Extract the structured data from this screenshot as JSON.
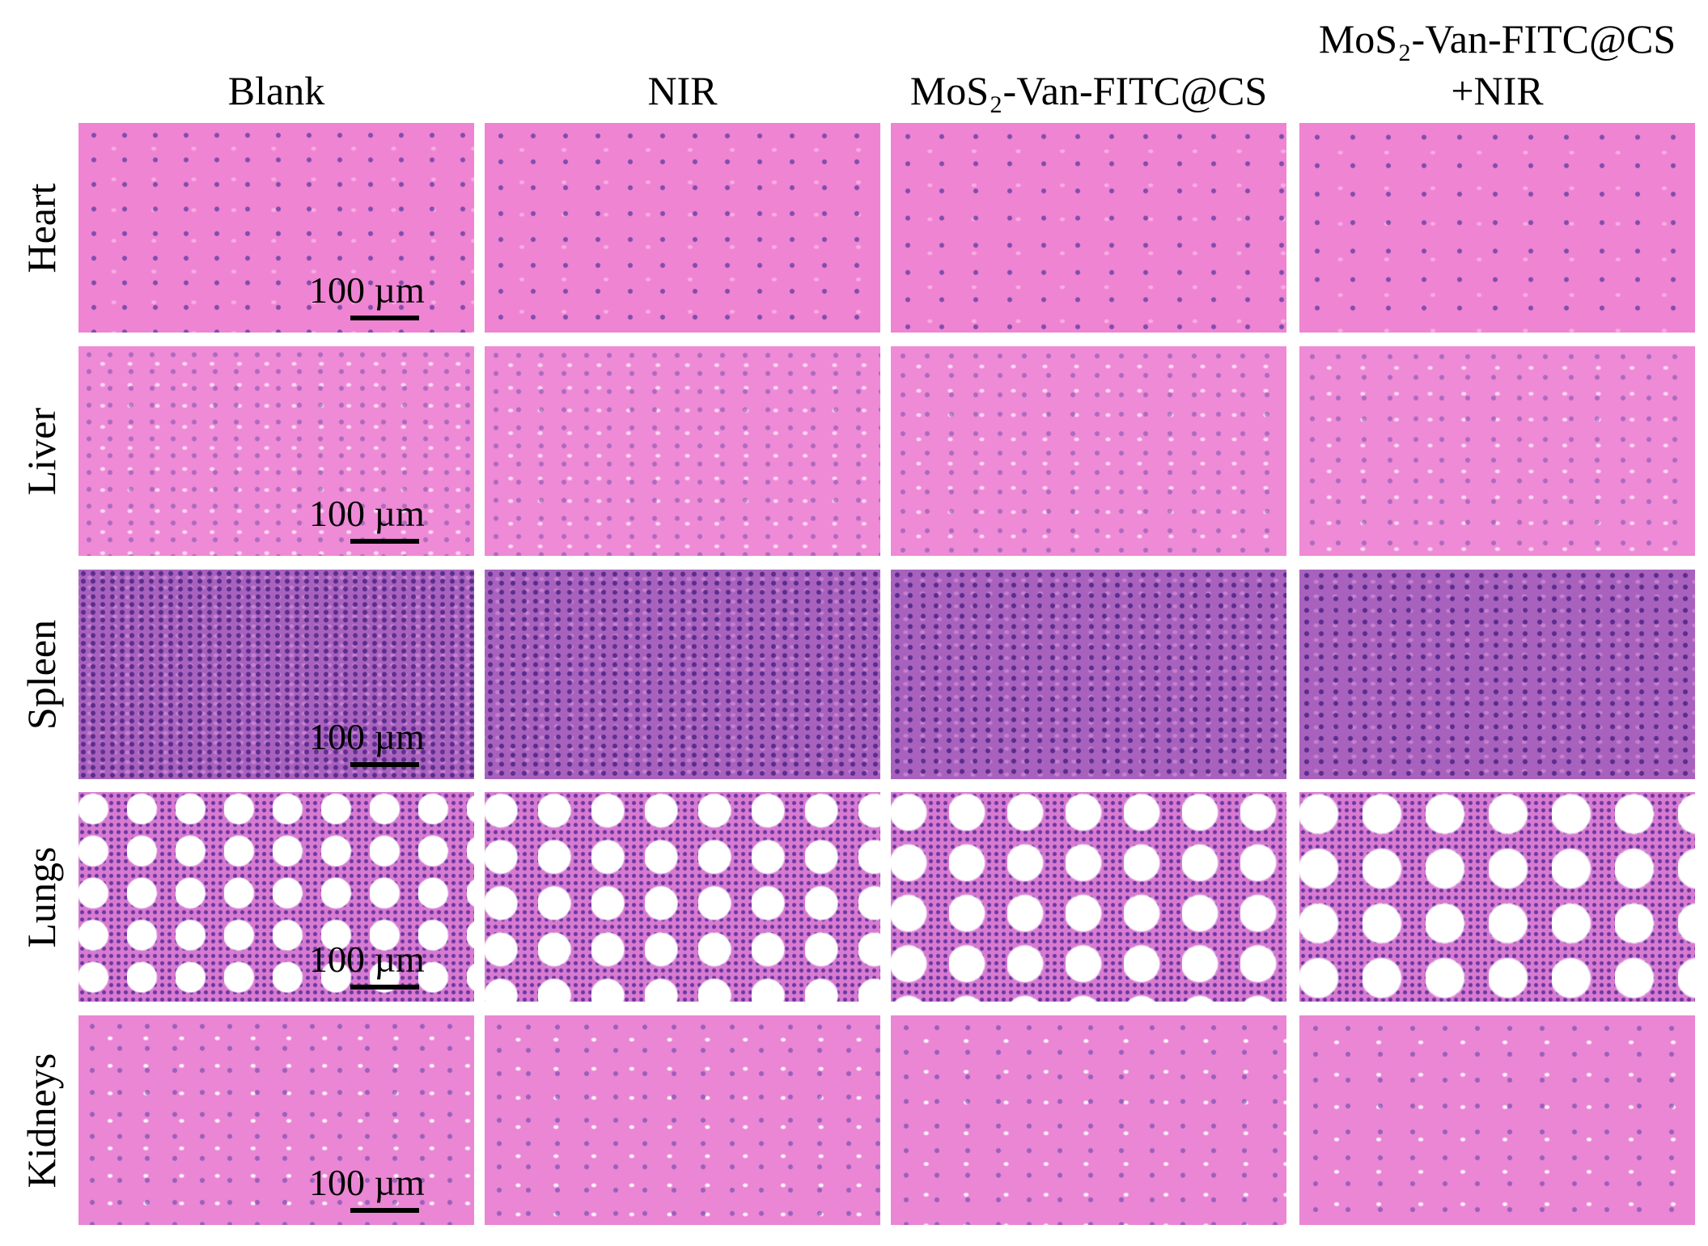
{
  "columns": [
    [
      "Blank"
    ],
    [
      "NIR"
    ],
    [
      "MoS₂-Van-FITC@CS"
    ],
    [
      "MoS₂-Van-FITC@CS",
      "+NIR"
    ]
  ],
  "rows": [
    {
      "label": "Heart",
      "scale_bar": "100 µm"
    },
    {
      "label": "Liver",
      "scale_bar": "100 µm"
    },
    {
      "label": "Spleen",
      "scale_bar": "100 µm"
    },
    {
      "label": "Lungs",
      "scale_bar": "100 µm"
    },
    {
      "label": "Kidneys",
      "scale_bar": "100 µm"
    }
  ]
}
